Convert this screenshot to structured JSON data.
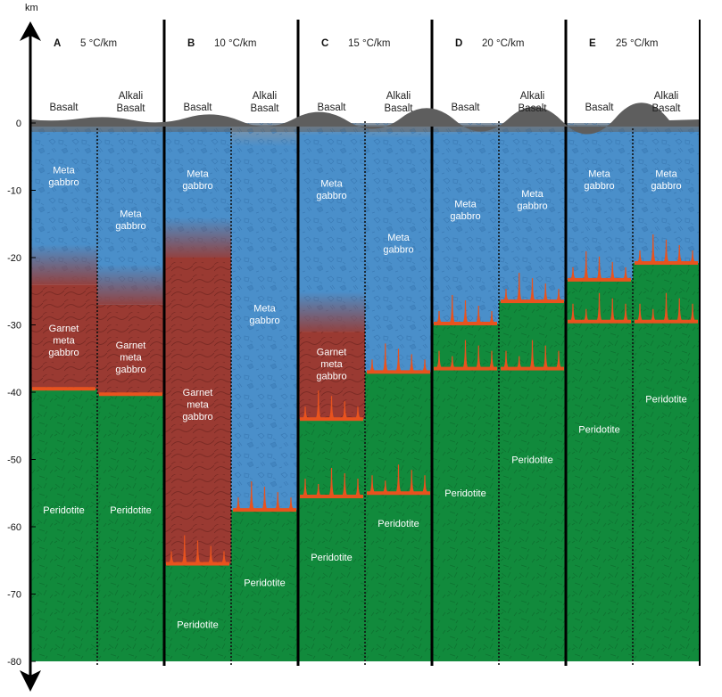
{
  "axis": {
    "unit": "km",
    "ticks": [
      {
        "value": 0,
        "label": "0"
      },
      {
        "value": -10,
        "label": "-10"
      },
      {
        "value": -20,
        "label": "-20"
      },
      {
        "value": -30,
        "label": "-30"
      },
      {
        "value": -40,
        "label": "-40"
      },
      {
        "value": -50,
        "label": "-50"
      },
      {
        "value": -60,
        "label": "-60"
      },
      {
        "value": -70,
        "label": "-70"
      },
      {
        "value": -80,
        "label": "-80"
      }
    ]
  },
  "colors": {
    "metagabbro": "#4a8fca",
    "garnet_metagabbro": "#9a3a32",
    "peridotite": "#118a3c",
    "melt": "#e8531e",
    "surface": "#5e5e5e"
  },
  "panels": [
    {
      "letter": "A",
      "gradient": "5 °C/km",
      "columns": [
        {
          "header": [
            "Basalt"
          ],
          "bottom_depth_km": 80,
          "layers": [
            {
              "type": "metagabbro",
              "top": 0,
              "bottom": 24
            },
            {
              "type": "garnet",
              "top": 24,
              "bottom": 39.5
            },
            {
              "type": "peridotite",
              "top": 39.5,
              "bottom": 80
            }
          ],
          "melt_lines": [
            {
              "depth": 39.5,
              "spikes": false
            }
          ],
          "labels": [
            {
              "lines": [
                "Meta",
                "gabbro"
              ],
              "depth": 7.5
            },
            {
              "lines": [
                "Garnet",
                "meta",
                "gabbro"
              ],
              "depth": 31
            },
            {
              "lines": [
                "Peridotite"
              ],
              "depth": 58
            }
          ]
        },
        {
          "header": [
            "Alkali",
            "Basalt"
          ],
          "bottom_depth_km": 80,
          "layers": [
            {
              "type": "metagabbro",
              "top": 0,
              "bottom": 27
            },
            {
              "type": "garnet",
              "top": 27,
              "bottom": 40.3
            },
            {
              "type": "peridotite",
              "top": 40.3,
              "bottom": 80
            }
          ],
          "melt_lines": [
            {
              "depth": 40.3,
              "spikes": false
            }
          ],
          "labels": [
            {
              "lines": [
                "Meta",
                "gabbro"
              ],
              "depth": 14
            },
            {
              "lines": [
                "Garnet",
                "meta",
                "gabbro"
              ],
              "depth": 33.5
            },
            {
              "lines": [
                "Peridotite"
              ],
              "depth": 58
            }
          ]
        }
      ]
    },
    {
      "letter": "B",
      "gradient": "10 °C/km",
      "columns": [
        {
          "header": [
            "Basalt"
          ],
          "bottom_depth_km": 80,
          "layers": [
            {
              "type": "metagabbro",
              "top": 0,
              "bottom": 20
            },
            {
              "type": "garnet",
              "top": 20,
              "bottom": 65.5
            },
            {
              "type": "peridotite",
              "top": 65.5,
              "bottom": 80
            }
          ],
          "melt_lines": [
            {
              "depth": 65.5,
              "spikes": true
            }
          ],
          "labels": [
            {
              "lines": [
                "Meta",
                "gabbro"
              ],
              "depth": 8
            },
            {
              "lines": [
                "Garnet",
                "meta",
                "gabbro"
              ],
              "depth": 40.5
            },
            {
              "lines": [
                "Peridotite"
              ],
              "depth": 75
            }
          ]
        },
        {
          "header": [
            "Alkali",
            "Basalt"
          ],
          "bottom_depth_km": 80,
          "layers": [
            {
              "type": "metagabbro",
              "top": 0,
              "bottom": 57.5
            },
            {
              "type": "peridotite",
              "top": 57.5,
              "bottom": 80
            }
          ],
          "melt_lines": [
            {
              "depth": 57.5,
              "spikes": true
            }
          ],
          "labels": [
            {
              "lines": [
                "Meta",
                "gabbro"
              ],
              "depth": 28
            },
            {
              "lines": [
                "Peridotite"
              ],
              "depth": 68.8
            }
          ]
        }
      ]
    },
    {
      "letter": "C",
      "gradient": "15 °C/km",
      "columns": [
        {
          "header": [
            "Basalt"
          ],
          "bottom_depth_km": 80,
          "layers": [
            {
              "type": "metagabbro",
              "top": 0,
              "bottom": 31
            },
            {
              "type": "garnet",
              "top": 31,
              "bottom": 44
            },
            {
              "type": "peridotite",
              "top": 44,
              "bottom": 80
            }
          ],
          "melt_lines": [
            {
              "depth": 44,
              "spikes": true
            },
            {
              "depth": 55.5,
              "spikes": true
            }
          ],
          "labels": [
            {
              "lines": [
                "Meta",
                "gabbro"
              ],
              "depth": 9.5
            },
            {
              "lines": [
                "Garnet",
                "meta",
                "gabbro"
              ],
              "depth": 34.5
            },
            {
              "lines": [
                "Peridotite"
              ],
              "depth": 65
            }
          ]
        },
        {
          "header": [
            "Alkali",
            "Basalt"
          ],
          "bottom_depth_km": 80,
          "layers": [
            {
              "type": "metagabbro",
              "top": 0,
              "bottom": 37
            },
            {
              "type": "peridotite",
              "top": 37,
              "bottom": 80
            }
          ],
          "melt_lines": [
            {
              "depth": 37,
              "spikes": true
            },
            {
              "depth": 55,
              "spikes": true
            }
          ],
          "labels": [
            {
              "lines": [
                "Meta",
                "gabbro"
              ],
              "depth": 17.5
            },
            {
              "lines": [
                "Peridotite"
              ],
              "depth": 60
            }
          ]
        }
      ]
    },
    {
      "letter": "D",
      "gradient": "20 °C/km",
      "columns": [
        {
          "header": [
            "Basalt"
          ],
          "bottom_depth_km": 80,
          "layers": [
            {
              "type": "metagabbro",
              "top": 0,
              "bottom": 29.8
            },
            {
              "type": "peridotite",
              "top": 29.8,
              "bottom": 80
            }
          ],
          "melt_lines": [
            {
              "depth": 29.8,
              "spikes": true
            },
            {
              "depth": 36.5,
              "spikes": true
            }
          ],
          "labels": [
            {
              "lines": [
                "Meta",
                "gabbro"
              ],
              "depth": 12.5
            },
            {
              "lines": [
                "Peridotite"
              ],
              "depth": 55.5
            }
          ]
        },
        {
          "header": [
            "Alkali",
            "Basalt"
          ],
          "bottom_depth_km": 80,
          "layers": [
            {
              "type": "metagabbro",
              "top": 0,
              "bottom": 26.5
            },
            {
              "type": "peridotite",
              "top": 26.5,
              "bottom": 80
            }
          ],
          "melt_lines": [
            {
              "depth": 26.5,
              "spikes": true
            },
            {
              "depth": 36.5,
              "spikes": true
            }
          ],
          "labels": [
            {
              "lines": [
                "Meta",
                "gabbro"
              ],
              "depth": 11
            },
            {
              "lines": [
                "Peridotite"
              ],
              "depth": 50.5
            }
          ]
        }
      ]
    },
    {
      "letter": "E",
      "gradient": "25 °C/km",
      "columns": [
        {
          "header": [
            "Basalt"
          ],
          "bottom_depth_km": 80,
          "layers": [
            {
              "type": "metagabbro",
              "top": 0,
              "bottom": 23.3
            },
            {
              "type": "peridotite",
              "top": 23.3,
              "bottom": 80
            }
          ],
          "melt_lines": [
            {
              "depth": 23.3,
              "spikes": true
            },
            {
              "depth": 29.5,
              "spikes": true
            }
          ],
          "labels": [
            {
              "lines": [
                "Meta",
                "gabbro"
              ],
              "depth": 8
            },
            {
              "lines": [
                "Peridotite"
              ],
              "depth": 46
            }
          ]
        },
        {
          "header": [
            "Alkali",
            "Basalt"
          ],
          "bottom_depth_km": 80,
          "layers": [
            {
              "type": "metagabbro",
              "top": 0,
              "bottom": 20.8
            },
            {
              "type": "peridotite",
              "top": 20.8,
              "bottom": 80
            }
          ],
          "melt_lines": [
            {
              "depth": 20.8,
              "spikes": true
            },
            {
              "depth": 29.5,
              "spikes": true
            }
          ],
          "labels": [
            {
              "lines": [
                "Meta",
                "gabbro"
              ],
              "depth": 8
            },
            {
              "lines": [
                "Peridotite"
              ],
              "depth": 41.5
            }
          ]
        }
      ]
    }
  ]
}
